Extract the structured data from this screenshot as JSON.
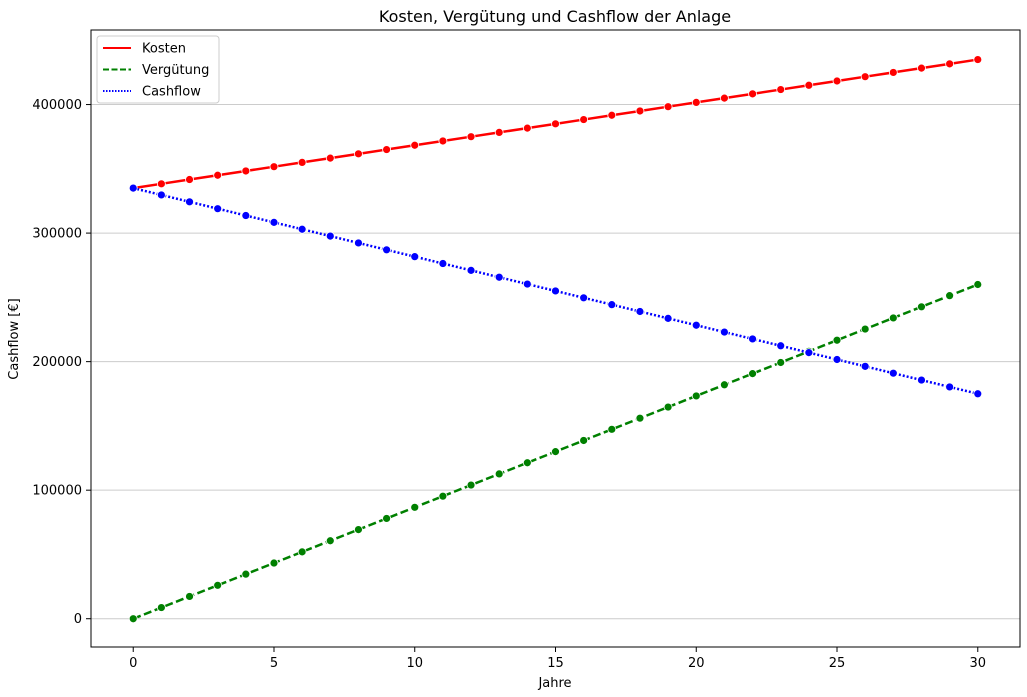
{
  "chart_data": {
    "type": "line",
    "title": "Kosten, Vergütung und Cashflow der Anlage",
    "xlabel": "Jahre",
    "ylabel": "Cashflow [€]",
    "xlim": [
      -1.5,
      31.5
    ],
    "ylim": [
      -22000,
      458000
    ],
    "xticks": [
      0,
      5,
      10,
      15,
      20,
      25,
      30
    ],
    "yticks": [
      0,
      100000,
      200000,
      300000,
      400000
    ],
    "grid": "horizontal",
    "legend_position": "top-left",
    "x": [
      0,
      1,
      2,
      3,
      4,
      5,
      6,
      7,
      8,
      9,
      10,
      11,
      12,
      13,
      14,
      15,
      16,
      17,
      18,
      19,
      20,
      21,
      22,
      23,
      24,
      25,
      26,
      27,
      28,
      29,
      30
    ],
    "series": [
      {
        "name": "Kosten",
        "color": "#ff0000",
        "dash": "solid",
        "values": [
          335000,
          338333,
          341667,
          345000,
          348333,
          351667,
          355000,
          358333,
          361667,
          365000,
          368333,
          371667,
          375000,
          378333,
          381667,
          385000,
          388333,
          391667,
          395000,
          398333,
          401667,
          405000,
          408333,
          411667,
          415000,
          418333,
          421667,
          425000,
          428333,
          431667,
          435000
        ]
      },
      {
        "name": "Vergütung",
        "color": "#008000",
        "dash": "dashed",
        "values": [
          0,
          8667,
          17333,
          26000,
          34667,
          43333,
          52000,
          60667,
          69333,
          78000,
          86667,
          95333,
          104000,
          112667,
          121333,
          130000,
          138667,
          147333,
          156000,
          164667,
          173333,
          182000,
          190667,
          199333,
          208000,
          216667,
          225333,
          234000,
          242667,
          251333,
          260000
        ]
      },
      {
        "name": "Cashflow",
        "color": "#0000ff",
        "dash": "dotted",
        "values": [
          335000,
          329667,
          324333,
          319000,
          313667,
          308333,
          303000,
          297667,
          292333,
          287000,
          281667,
          276333,
          271000,
          265667,
          260333,
          255000,
          249667,
          244333,
          239000,
          233667,
          228333,
          223000,
          217667,
          212333,
          207000,
          201667,
          196333,
          191000,
          185667,
          180333,
          175000
        ]
      }
    ]
  }
}
